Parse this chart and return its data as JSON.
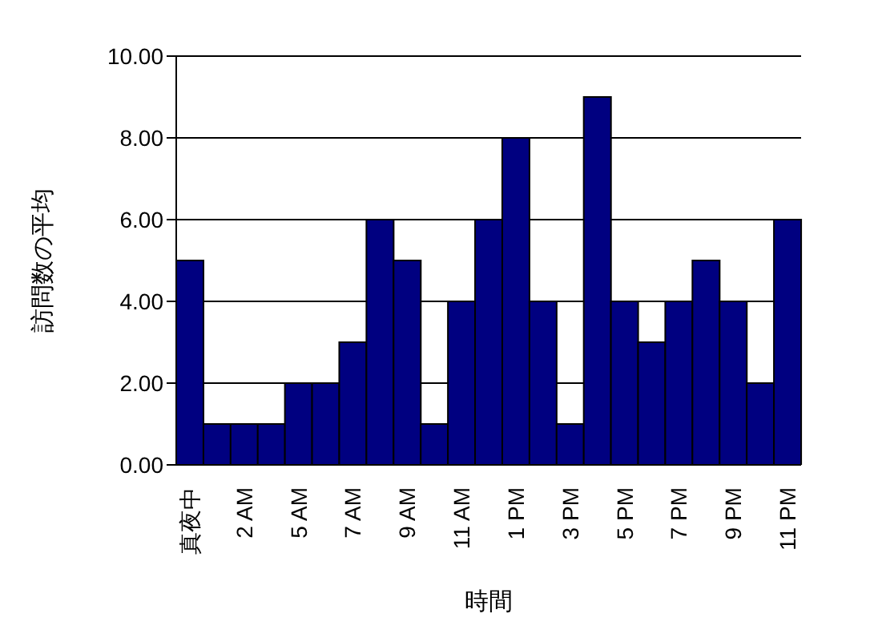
{
  "chart_data": {
    "type": "bar",
    "xlabel": "時間",
    "ylabel": "訪問数の平均",
    "categories": [
      "真夜中",
      null,
      "2 AM",
      null,
      "5 AM",
      null,
      "7 AM",
      null,
      "9 AM",
      null,
      "11 AM",
      null,
      "1 PM",
      null,
      "3 PM",
      null,
      "5 PM",
      null,
      "7 PM",
      null,
      "9 PM",
      null,
      "11 PM"
    ],
    "values": [
      5,
      1,
      1,
      1,
      2,
      2,
      3,
      6,
      5,
      1,
      4,
      6,
      8,
      4,
      1,
      9,
      4,
      3,
      4,
      5,
      4,
      2,
      6
    ],
    "color": "#000080",
    "ylim": [
      0,
      10
    ],
    "yticks": [
      {
        "value": 0,
        "label": "0.00"
      },
      {
        "value": 2,
        "label": "2.00"
      },
      {
        "value": 4,
        "label": "4.00"
      },
      {
        "value": 6,
        "label": "6.00"
      },
      {
        "value": 8,
        "label": "8.00"
      },
      {
        "value": 10,
        "label": "10.00"
      }
    ],
    "grid": "y"
  }
}
